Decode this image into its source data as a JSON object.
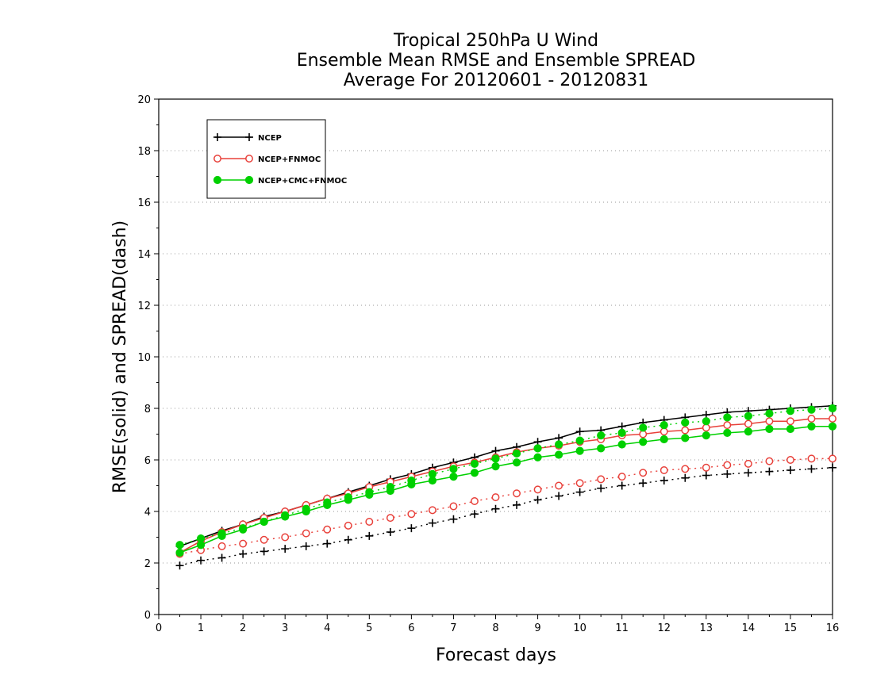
{
  "chart_data": {
    "type": "line",
    "title": [
      "Tropical 250hPa U Wind",
      "Ensemble Mean RMSE and Ensemble SPREAD",
      "Average For 20120601 - 20120831"
    ],
    "xlabel": "Forecast days",
    "ylabel": "RMSE(solid) and SPREAD(dash)",
    "xlim": [
      0,
      16
    ],
    "ylim": [
      0,
      20
    ],
    "xticks": [
      "0",
      "1",
      "2",
      "3",
      "4",
      "5",
      "6",
      "7",
      "8",
      "9",
      "10",
      "11",
      "12",
      "13",
      "14",
      "15",
      "16"
    ],
    "yticks": [
      "0",
      "2",
      "4",
      "6",
      "8",
      "10",
      "12",
      "14",
      "16",
      "18",
      "20"
    ],
    "grid": true,
    "legend_position": "top-left",
    "x": [
      0.5,
      1,
      1.5,
      2,
      2.5,
      3,
      3.5,
      4,
      4.5,
      5,
      5.5,
      6,
      6.5,
      7,
      7.5,
      8,
      8.5,
      9,
      9.5,
      10,
      10.5,
      11,
      11.5,
      12,
      12.5,
      13,
      13.5,
      14,
      14.5,
      15,
      15.5,
      16
    ],
    "series": [
      {
        "name": "NCEP",
        "color": "#000000",
        "marker": "plus",
        "rmse": [
          2.65,
          2.95,
          3.25,
          3.5,
          3.8,
          4.0,
          4.25,
          4.5,
          4.75,
          5.0,
          5.25,
          5.45,
          5.7,
          5.9,
          6.1,
          6.35,
          6.5,
          6.7,
          6.85,
          7.1,
          7.15,
          7.3,
          7.45,
          7.55,
          7.65,
          7.75,
          7.85,
          7.9,
          7.95,
          8.0,
          8.05,
          8.1
        ],
        "spread": [
          1.9,
          2.1,
          2.2,
          2.35,
          2.45,
          2.55,
          2.65,
          2.75,
          2.9,
          3.05,
          3.2,
          3.35,
          3.55,
          3.7,
          3.9,
          4.1,
          4.25,
          4.45,
          4.6,
          4.75,
          4.9,
          5.0,
          5.1,
          5.2,
          5.3,
          5.4,
          5.45,
          5.5,
          5.55,
          5.6,
          5.65,
          5.7
        ]
      },
      {
        "name": "NCEP+FNMOC",
        "color": "#e8403a",
        "marker": "open-circle",
        "rmse": [
          2.4,
          2.85,
          3.2,
          3.5,
          3.75,
          4.0,
          4.25,
          4.5,
          4.7,
          4.95,
          5.15,
          5.35,
          5.55,
          5.75,
          5.9,
          6.1,
          6.3,
          6.45,
          6.55,
          6.7,
          6.8,
          6.95,
          7.0,
          7.1,
          7.15,
          7.25,
          7.35,
          7.4,
          7.5,
          7.5,
          7.6,
          7.6
        ],
        "spread": [
          2.35,
          2.5,
          2.65,
          2.75,
          2.9,
          3.0,
          3.15,
          3.3,
          3.45,
          3.6,
          3.75,
          3.9,
          4.05,
          4.2,
          4.4,
          4.55,
          4.7,
          4.85,
          5.0,
          5.1,
          5.25,
          5.35,
          5.5,
          5.6,
          5.65,
          5.7,
          5.8,
          5.85,
          5.95,
          6.0,
          6.05,
          6.05
        ]
      },
      {
        "name": "NCEP+CMC+FNMOC",
        "color": "#00d000",
        "marker": "filled-circle",
        "rmse": [
          2.4,
          2.7,
          3.05,
          3.3,
          3.6,
          3.8,
          4.0,
          4.25,
          4.45,
          4.65,
          4.8,
          5.05,
          5.2,
          5.35,
          5.5,
          5.75,
          5.9,
          6.1,
          6.2,
          6.35,
          6.45,
          6.6,
          6.7,
          6.8,
          6.85,
          6.95,
          7.05,
          7.1,
          7.2,
          7.2,
          7.3,
          7.3
        ],
        "spread": [
          2.7,
          2.95,
          3.15,
          3.35,
          3.6,
          3.85,
          4.1,
          4.35,
          4.55,
          4.75,
          4.95,
          5.2,
          5.45,
          5.65,
          5.85,
          6.05,
          6.25,
          6.45,
          6.6,
          6.75,
          6.95,
          7.05,
          7.25,
          7.35,
          7.45,
          7.5,
          7.65,
          7.7,
          7.8,
          7.9,
          7.95,
          8.0
        ]
      }
    ]
  }
}
